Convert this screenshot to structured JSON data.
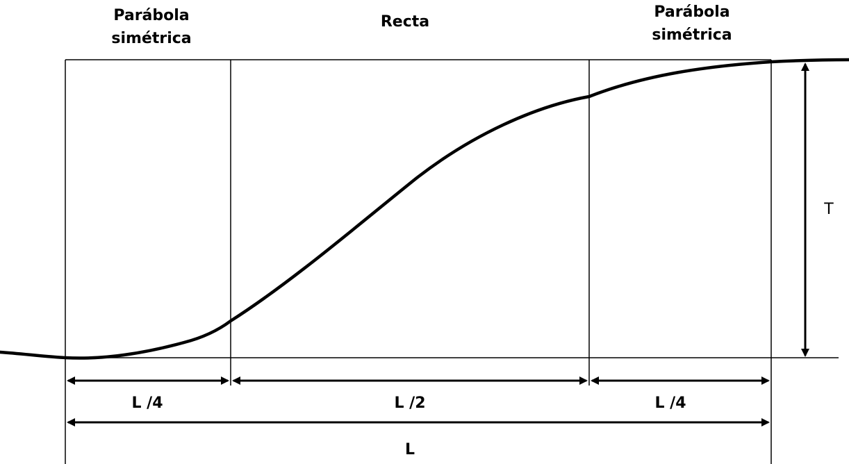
{
  "sections": {
    "left": {
      "line1": "Parábola",
      "line2": "simétrica"
    },
    "middle": {
      "label": "Recta"
    },
    "right": {
      "line1": "Parábola",
      "line2": "simétrica"
    }
  },
  "dimensions": {
    "left_quarter": "L /4",
    "half": "L /2",
    "right_quarter": "L /4",
    "total": "L",
    "height": "T"
  },
  "colors": {
    "stroke": "#000000",
    "background": "#ffffff"
  }
}
